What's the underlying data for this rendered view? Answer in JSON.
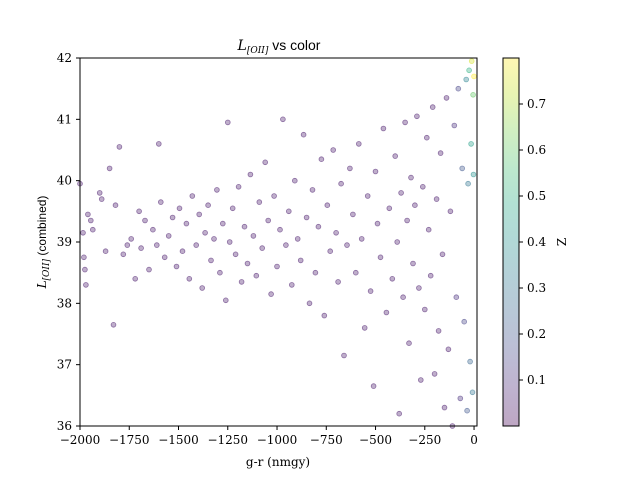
{
  "chart_data": {
    "type": "scatter",
    "title": "L_[OII] vs color",
    "title_main": "L",
    "title_sub": "[OII]",
    "title_rest": " vs color",
    "xlabel": "g-r (nmgy)",
    "ylabel": "L_[OII] (combined)",
    "ylabel_main": "L",
    "ylabel_sub": "[OII]",
    "ylabel_rest": " (combined)",
    "xlim": [
      -2000,
      15
    ],
    "ylim": [
      36,
      42
    ],
    "xticks": [
      -2000,
      -1750,
      -1500,
      -1250,
      -1000,
      -750,
      -500,
      -250,
      0
    ],
    "xtick_labels": [
      "−2000",
      "−1750",
      "−1500",
      "−1250",
      "−1000",
      "−750",
      "−500",
      "−250",
      "0"
    ],
    "yticks": [
      36,
      37,
      38,
      39,
      40,
      41,
      42
    ],
    "ytick_labels": [
      "36",
      "37",
      "38",
      "39",
      "40",
      "41",
      "42"
    ],
    "colorbar": {
      "label": "Z",
      "range": [
        0.0,
        0.8
      ],
      "ticks": [
        0.1,
        0.2,
        0.3,
        0.4,
        0.5,
        0.6,
        0.7
      ],
      "tick_labels": [
        "0.1",
        "0.2",
        "0.3",
        "0.4",
        "0.5",
        "0.6",
        "0.7"
      ],
      "colormap": "viridis"
    },
    "marker_alpha": 0.35,
    "colormap_stops": [
      "#440154",
      "#482475",
      "#414487",
      "#355f8d",
      "#2a788e",
      "#21908d",
      "#22a884",
      "#42be71",
      "#7ad151",
      "#bddf26",
      "#fde725"
    ],
    "points": [
      [
        -2000,
        39.95,
        0.05
      ],
      [
        -1985,
        39.15,
        0.05
      ],
      [
        -1980,
        38.75,
        0.05
      ],
      [
        -1975,
        38.55,
        0.05
      ],
      [
        -1970,
        38.3,
        0.05
      ],
      [
        -1960,
        39.45,
        0.05
      ],
      [
        -1945,
        39.35,
        0.05
      ],
      [
        -1935,
        39.2,
        0.05
      ],
      [
        -1900,
        39.8,
        0.05
      ],
      [
        -1890,
        39.7,
        0.05
      ],
      [
        -1870,
        38.85,
        0.05
      ],
      [
        -1850,
        40.2,
        0.05
      ],
      [
        -1830,
        37.65,
        0.05
      ],
      [
        -1820,
        39.6,
        0.05
      ],
      [
        -1800,
        40.55,
        0.05
      ],
      [
        -1780,
        38.8,
        0.05
      ],
      [
        -1760,
        38.95,
        0.05
      ],
      [
        -1740,
        39.05,
        0.05
      ],
      [
        -1720,
        38.4,
        0.05
      ],
      [
        -1700,
        39.5,
        0.05
      ],
      [
        -1690,
        38.9,
        0.05
      ],
      [
        -1670,
        39.35,
        0.05
      ],
      [
        -1650,
        38.55,
        0.05
      ],
      [
        -1630,
        39.2,
        0.05
      ],
      [
        -1610,
        38.95,
        0.05
      ],
      [
        -1600,
        40.6,
        0.05
      ],
      [
        -1590,
        39.65,
        0.05
      ],
      [
        -1570,
        38.75,
        0.05
      ],
      [
        -1550,
        39.1,
        0.05
      ],
      [
        -1530,
        39.4,
        0.05
      ],
      [
        -1510,
        38.6,
        0.05
      ],
      [
        -1495,
        39.55,
        0.05
      ],
      [
        -1480,
        38.85,
        0.05
      ],
      [
        -1460,
        39.3,
        0.05
      ],
      [
        -1445,
        38.4,
        0.05
      ],
      [
        -1430,
        39.75,
        0.05
      ],
      [
        -1410,
        38.95,
        0.05
      ],
      [
        -1395,
        39.45,
        0.05
      ],
      [
        -1380,
        38.25,
        0.05
      ],
      [
        -1365,
        39.15,
        0.05
      ],
      [
        -1350,
        39.6,
        0.05
      ],
      [
        -1335,
        38.7,
        0.05
      ],
      [
        -1320,
        39.05,
        0.05
      ],
      [
        -1305,
        39.85,
        0.05
      ],
      [
        -1290,
        38.5,
        0.05
      ],
      [
        -1275,
        39.3,
        0.05
      ],
      [
        -1260,
        38.05,
        0.05
      ],
      [
        -1250,
        40.95,
        0.05
      ],
      [
        -1240,
        39.0,
        0.05
      ],
      [
        -1225,
        39.55,
        0.05
      ],
      [
        -1210,
        38.8,
        0.05
      ],
      [
        -1195,
        39.9,
        0.05
      ],
      [
        -1180,
        38.35,
        0.05
      ],
      [
        -1165,
        39.25,
        0.05
      ],
      [
        -1150,
        38.65,
        0.05
      ],
      [
        -1135,
        40.1,
        0.05
      ],
      [
        -1120,
        39.1,
        0.05
      ],
      [
        -1105,
        38.45,
        0.05
      ],
      [
        -1090,
        39.65,
        0.05
      ],
      [
        -1075,
        38.9,
        0.05
      ],
      [
        -1060,
        40.3,
        0.05
      ],
      [
        -1045,
        39.35,
        0.05
      ],
      [
        -1030,
        38.15,
        0.05
      ],
      [
        -1015,
        39.75,
        0.05
      ],
      [
        -1000,
        38.6,
        0.05
      ],
      [
        -985,
        39.2,
        0.05
      ],
      [
        -970,
        41.0,
        0.05
      ],
      [
        -955,
        38.95,
        0.05
      ],
      [
        -940,
        39.5,
        0.05
      ],
      [
        -925,
        38.3,
        0.05
      ],
      [
        -910,
        40.0,
        0.05
      ],
      [
        -895,
        39.05,
        0.05
      ],
      [
        -880,
        38.7,
        0.05
      ],
      [
        -865,
        40.75,
        0.05
      ],
      [
        -850,
        39.4,
        0.05
      ],
      [
        -835,
        38.0,
        0.05
      ],
      [
        -820,
        39.85,
        0.05
      ],
      [
        -805,
        38.5,
        0.05
      ],
      [
        -790,
        39.25,
        0.05
      ],
      [
        -775,
        40.35,
        0.05
      ],
      [
        -760,
        37.8,
        0.05
      ],
      [
        -745,
        39.6,
        0.05
      ],
      [
        -730,
        38.85,
        0.05
      ],
      [
        -715,
        40.5,
        0.05
      ],
      [
        -700,
        39.15,
        0.05
      ],
      [
        -690,
        38.35,
        0.05
      ],
      [
        -675,
        39.95,
        0.05
      ],
      [
        -660,
        37.15,
        0.05
      ],
      [
        -645,
        38.95,
        0.05
      ],
      [
        -630,
        40.2,
        0.05
      ],
      [
        -615,
        39.45,
        0.05
      ],
      [
        -600,
        38.5,
        0.05
      ],
      [
        -585,
        40.6,
        0.05
      ],
      [
        -570,
        39.05,
        0.05
      ],
      [
        -555,
        37.6,
        0.05
      ],
      [
        -540,
        39.75,
        0.05
      ],
      [
        -525,
        38.2,
        0.05
      ],
      [
        -510,
        36.65,
        0.05
      ],
      [
        -500,
        40.15,
        0.05
      ],
      [
        -490,
        39.3,
        0.05
      ],
      [
        -475,
        38.75,
        0.05
      ],
      [
        -460,
        40.85,
        0.05
      ],
      [
        -445,
        37.85,
        0.05
      ],
      [
        -430,
        39.55,
        0.05
      ],
      [
        -415,
        38.4,
        0.05
      ],
      [
        -400,
        40.4,
        0.05
      ],
      [
        -390,
        39.0,
        0.05
      ],
      [
        -380,
        36.2,
        0.05
      ],
      [
        -370,
        39.8,
        0.05
      ],
      [
        -360,
        38.1,
        0.05
      ],
      [
        -350,
        40.95,
        0.05
      ],
      [
        -340,
        39.35,
        0.05
      ],
      [
        -330,
        37.35,
        0.05
      ],
      [
        -320,
        40.05,
        0.05
      ],
      [
        -310,
        38.65,
        0.05
      ],
      [
        -300,
        39.6,
        0.05
      ],
      [
        -290,
        41.05,
        0.05
      ],
      [
        -280,
        38.25,
        0.05
      ],
      [
        -270,
        36.75,
        0.05
      ],
      [
        -260,
        39.9,
        0.05
      ],
      [
        -250,
        37.9,
        0.05
      ],
      [
        -240,
        40.7,
        0.05
      ],
      [
        -230,
        39.2,
        0.05
      ],
      [
        -220,
        38.45,
        0.05
      ],
      [
        -210,
        41.2,
        0.05
      ],
      [
        -200,
        36.85,
        0.05
      ],
      [
        -190,
        39.7,
        0.05
      ],
      [
        -180,
        37.55,
        0.05
      ],
      [
        -170,
        40.45,
        0.05
      ],
      [
        -160,
        38.8,
        0.05
      ],
      [
        -150,
        36.3,
        0.05
      ],
      [
        -140,
        41.35,
        0.05
      ],
      [
        -130,
        37.25,
        0.05
      ],
      [
        -120,
        39.5,
        0.05
      ],
      [
        -110,
        36.0,
        0.05
      ],
      [
        -100,
        40.9,
        0.1
      ],
      [
        -90,
        38.1,
        0.1
      ],
      [
        -80,
        41.5,
        0.15
      ],
      [
        -70,
        36.45,
        0.1
      ],
      [
        -60,
        40.2,
        0.2
      ],
      [
        -50,
        37.7,
        0.15
      ],
      [
        -40,
        41.65,
        0.35
      ],
      [
        -35,
        36.25,
        0.2
      ],
      [
        -30,
        39.95,
        0.3
      ],
      [
        -25,
        41.8,
        0.5
      ],
      [
        -20,
        37.05,
        0.25
      ],
      [
        -15,
        40.6,
        0.45
      ],
      [
        -12,
        41.95,
        0.75
      ],
      [
        -8,
        36.55,
        0.3
      ],
      [
        -5,
        41.4,
        0.6
      ],
      [
        -3,
        40.1,
        0.4
      ],
      [
        0,
        41.7,
        0.8
      ]
    ]
  }
}
